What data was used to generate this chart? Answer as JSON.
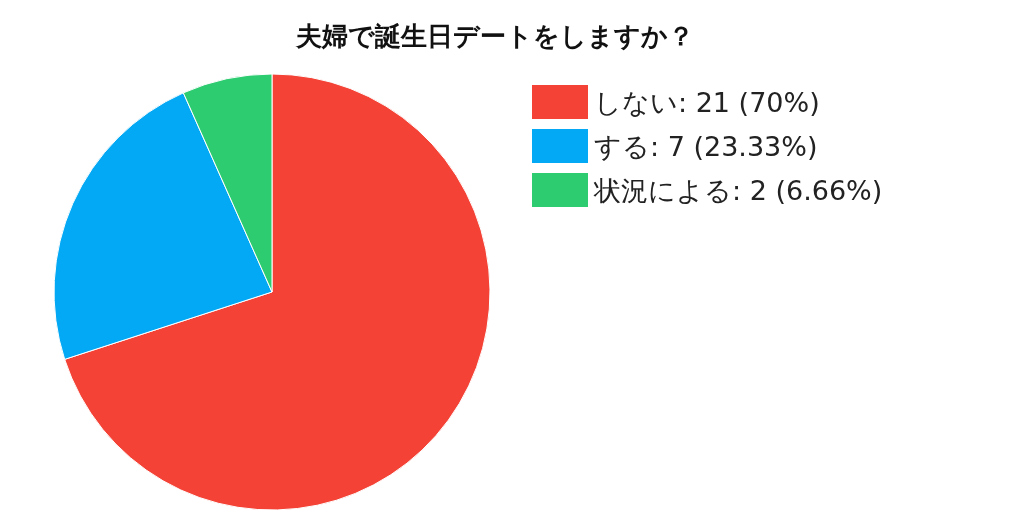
{
  "chart_data": {
    "type": "pie",
    "title": "夫婦で誕生日デートをしますか？",
    "categories": [
      "しない: 21 (70%)",
      "する: 7 (23.33%)",
      "状況による: 2 (6.66%)"
    ],
    "values": [
      21,
      7,
      2
    ],
    "colors": [
      "#f44336",
      "#03a9f4",
      "#2ecc71"
    ],
    "legend": "top right"
  }
}
